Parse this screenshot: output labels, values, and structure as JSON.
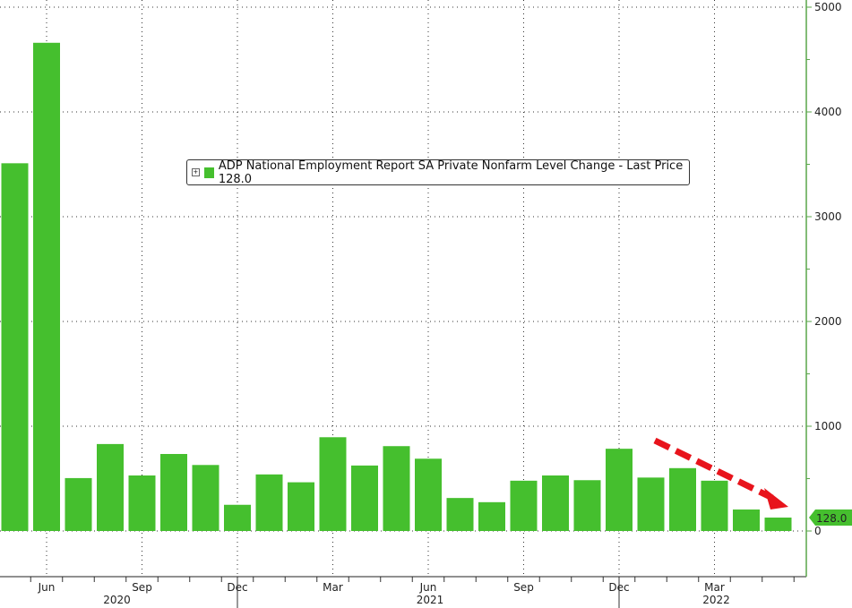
{
  "chart_data": {
    "type": "bar",
    "title": "",
    "legend": {
      "label": "ADP National Employment Report SA Private Nonfarm Level Change - Last Price 128.0",
      "placement": "top-center"
    },
    "last_price_label": "128.0",
    "categories": [
      "May 2020",
      "Jun 2020",
      "Jul 2020",
      "Aug 2020",
      "Sep 2020",
      "Oct 2020",
      "Nov 2020",
      "Dec 2020",
      "Jan 2021",
      "Feb 2021",
      "Mar 2021",
      "Apr 2021",
      "May 2021",
      "Jun 2021",
      "Jul 2021",
      "Aug 2021",
      "Sep 2021",
      "Oct 2021",
      "Nov 2021",
      "Dec 2021",
      "Jan 2022",
      "Feb 2022",
      "Mar 2022",
      "Apr 2022",
      "May 2022"
    ],
    "values": [
      3510,
      4660,
      505,
      830,
      530,
      735,
      630,
      250,
      540,
      465,
      895,
      625,
      810,
      690,
      315,
      275,
      480,
      530,
      485,
      785,
      510,
      600,
      480,
      205,
      128
    ],
    "ylim": [
      -430,
      5000
    ],
    "yticks": [
      "0",
      "1000",
      "2000",
      "3000",
      "4000",
      "5000"
    ],
    "x_month_ticks": [
      {
        "label": "Jun",
        "index": 1
      },
      {
        "label": "Sep",
        "index": 4
      },
      {
        "label": "Dec",
        "index": 7
      },
      {
        "label": "Mar",
        "index": 10
      },
      {
        "label": "Jun",
        "index": 13
      },
      {
        "label": "Sep",
        "index": 16
      },
      {
        "label": "Dec",
        "index": 19
      },
      {
        "label": "Mar",
        "index": 22
      }
    ],
    "x_year_ticks": [
      {
        "label": "2020",
        "index": 4
      },
      {
        "label": "2021",
        "index": 13
      },
      {
        "label": "2022",
        "index": 22
      }
    ],
    "grid": true,
    "annotation": "red dashed downward arrow over last bars",
    "colors": {
      "bar": "#45bf2e",
      "axis": "#5aa64a",
      "arrow": "#e8141c",
      "label_bg": "#45bf2e"
    }
  }
}
